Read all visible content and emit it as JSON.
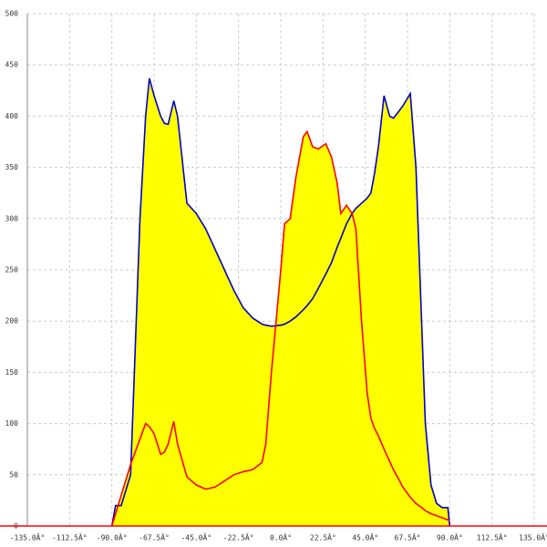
{
  "chart_data": {
    "type": "line",
    "x": [
      -90,
      -88,
      -85,
      -80,
      -75,
      -72,
      -70,
      -67.5,
      -64,
      -62,
      -60,
      -57,
      -55,
      -50,
      -45,
      -40,
      -35,
      -30,
      -25,
      -20,
      -15,
      -10,
      -8,
      -5,
      0,
      2,
      5,
      8,
      12,
      14,
      17,
      20,
      24,
      27,
      30,
      32,
      35,
      38,
      40,
      43,
      46,
      48,
      50,
      52,
      55,
      58,
      60,
      63,
      65,
      69,
      72,
      75,
      77,
      80,
      83,
      86,
      89,
      90
    ],
    "series": [
      {
        "color": "#0000cc",
        "fill": "#ffff00",
        "values": [
          0,
          20,
          20,
          50,
          300,
          400,
          437,
          420,
          400,
          393,
          392,
          415,
          400,
          315,
          305,
          290,
          270,
          250,
          230,
          213,
          203,
          197,
          196,
          195,
          196,
          197,
          200,
          204,
          211,
          215,
          222,
          232,
          246,
          257,
          272,
          281,
          295,
          305,
          310,
          315,
          320,
          325,
          345,
          370,
          420,
          400,
          398,
          405,
          410,
          422,
          350,
          200,
          100,
          40,
          22,
          18,
          18,
          0
        ]
      },
      {
        "color": "#ff0000",
        "fill": "#ffff00",
        "values": [
          0,
          12,
          30,
          60,
          85,
          100,
          97,
          90,
          70,
          72,
          80,
          102,
          80,
          48,
          40,
          36,
          38,
          44,
          50,
          53,
          55,
          62,
          80,
          150,
          250,
          295,
          300,
          340,
          380,
          385,
          370,
          368,
          373,
          360,
          335,
          305,
          313,
          305,
          290,
          200,
          130,
          105,
          95,
          88,
          75,
          63,
          55,
          45,
          38,
          28,
          22,
          18,
          15,
          12,
          10,
          8,
          6,
          5
        ]
      }
    ],
    "xlim": [
      -135,
      135
    ],
    "ylim": [
      0,
      500
    ],
    "xticks": [
      {
        "value": -135,
        "label": "-135.0Â°"
      },
      {
        "value": -112.5,
        "label": "-112.5Â°"
      },
      {
        "value": -90,
        "label": "-90.0Â°"
      },
      {
        "value": -67.5,
        "label": "-67.5Â°"
      },
      {
        "value": -45,
        "label": "-45.0Â°"
      },
      {
        "value": -22.5,
        "label": "-22.5Â°"
      },
      {
        "value": 0,
        "label": "0.0Â°"
      },
      {
        "value": 22.5,
        "label": "22.5Â°"
      },
      {
        "value": 45,
        "label": "45.0Â°"
      },
      {
        "value": 67.5,
        "label": "67.5Â°"
      },
      {
        "value": 90,
        "label": "90.0Â°"
      },
      {
        "value": 112.5,
        "label": "112.5Â°"
      },
      {
        "value": 135,
        "label": "135.0Â°"
      }
    ],
    "yticks": [
      0,
      50,
      100,
      150,
      200,
      250,
      300,
      350,
      400,
      450,
      500
    ],
    "grid": true,
    "axis_color": "#ff0000"
  }
}
